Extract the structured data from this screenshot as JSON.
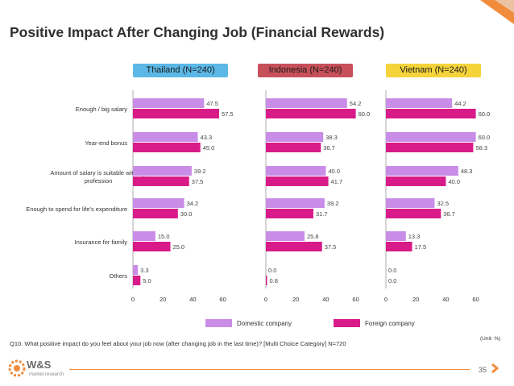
{
  "title": "Positive Impact After Changing Job (Financial Rewards)",
  "footnote": "Q10. What positive impact do you feel about your job now (after changing job in the last time)? [Multi Choice Category]   N=720",
  "unit_note": "(Unit: %)",
  "page_number": "35",
  "logo": {
    "brand": "W&S",
    "sub": "market research"
  },
  "colors": {
    "domestic": "#c98de8",
    "foreign": "#d81b88",
    "thailand_header": "#5bb8e6",
    "indonesia_header": "#c8505a",
    "vietnam_header": "#f5d33b",
    "accent": "#f08c3c"
  },
  "chart_data": {
    "type": "bar",
    "orientation": "horizontal",
    "title": "Positive Impact After Changing Job (Financial Rewards)",
    "categories": [
      "Enough / big salary",
      "Year-end bonus",
      "Amount of salary is suitable with my profession",
      "Enough to spend for life's expenditure",
      "Insurance for family",
      "Others"
    ],
    "xlim": [
      0,
      70
    ],
    "xticks": [
      "0",
      "20",
      "40",
      "60"
    ],
    "legend": [
      "Domestic company",
      "Foreign company"
    ],
    "panels": [
      {
        "name": "Thailand (N=240)",
        "series": [
          {
            "name": "Domestic company",
            "values": [
              47.5,
              43.3,
              39.2,
              34.2,
              15.0,
              3.3
            ],
            "labels": [
              "47.5",
              "43.3",
              "39.2",
              "34.2",
              "15.0",
              "3.3"
            ]
          },
          {
            "name": "Foreign company",
            "values": [
              57.5,
              45.0,
              37.5,
              30.0,
              25.0,
              5.0
            ],
            "labels": [
              "57.5",
              "45.0",
              "37.5",
              "30.0",
              "25.0",
              "5.0"
            ]
          }
        ]
      },
      {
        "name": "Indonesia (N=240)",
        "series": [
          {
            "name": "Domestic company",
            "values": [
              54.2,
              38.3,
              40.0,
              39.2,
              25.8,
              0.0
            ],
            "labels": [
              "54.2",
              "38.3",
              "40.0",
              "39.2",
              "25.8",
              "0.0"
            ]
          },
          {
            "name": "Foreign company",
            "values": [
              60.0,
              36.7,
              41.7,
              31.7,
              37.5,
              0.8
            ],
            "labels": [
              "60.0",
              "36.7",
              "41.7",
              "31.7",
              "37.5",
              "0.8"
            ]
          }
        ]
      },
      {
        "name": "Vietnam (N=240)",
        "series": [
          {
            "name": "Domestic company",
            "values": [
              44.2,
              60.0,
              48.3,
              32.5,
              13.3,
              0.0
            ],
            "labels": [
              "44.2",
              "60.0",
              "48.3",
              "32.5",
              "13.3",
              "0.0"
            ]
          },
          {
            "name": "Foreign company",
            "values": [
              60.0,
              58.3,
              40.0,
              36.7,
              17.5,
              0.0
            ],
            "labels": [
              "60.0",
              "58.3",
              "40.0",
              "36.7",
              "17.5",
              "0.0"
            ]
          }
        ]
      }
    ]
  }
}
